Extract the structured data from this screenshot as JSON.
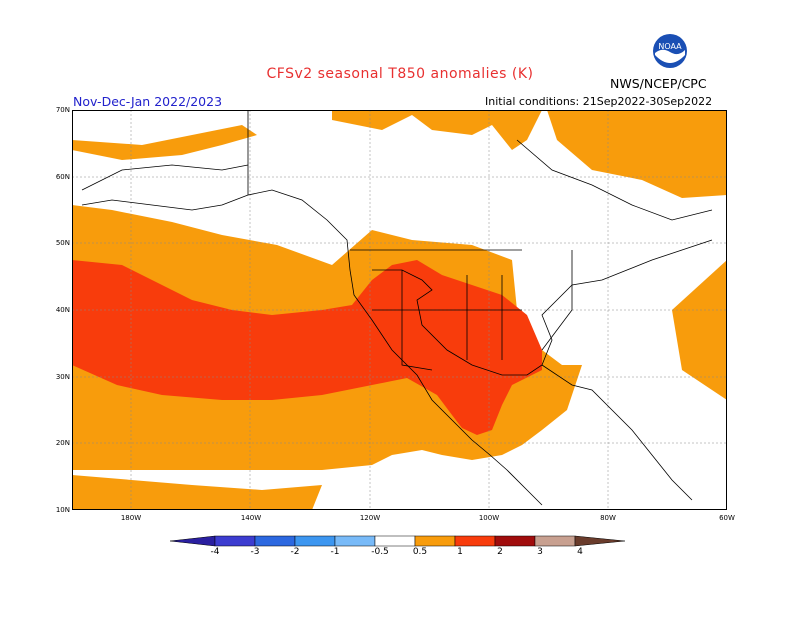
{
  "title": "CFSv2 seasonal T850 anomalies (K)",
  "agency": "NWS/NCEP/CPC",
  "logo_text": "NOAA",
  "season": "Nov-Dec-Jan 2022/2023",
  "initial_conditions": "Initial conditions: 21Sep2022-30Sep2022",
  "lat_labels": [
    "70N",
    "60N",
    "50N",
    "40N",
    "30N",
    "20N",
    "10N"
  ],
  "lon_labels": [
    "180W",
    "140W",
    "120W",
    "100W",
    "80W",
    "60W"
  ],
  "legend": {
    "labels": [
      "-4",
      "-3",
      "-2",
      "-1",
      "-0.5",
      "0.5",
      "1",
      "2",
      "3",
      "4"
    ],
    "colors": [
      "#2a1fa0",
      "#3c3cd0",
      "#2c68e0",
      "#3c96f0",
      "#78baf8",
      "#ffffff",
      "#f89c0c",
      "#f83c0c",
      "#a00c0c",
      "#c8a090",
      "#6a3c2c"
    ]
  },
  "colors": {
    "anomaly_05_1": "#f89c0c",
    "anomaly_1_2": "#f83c0c",
    "title": "#e83030",
    "season": "#2222cc"
  }
}
